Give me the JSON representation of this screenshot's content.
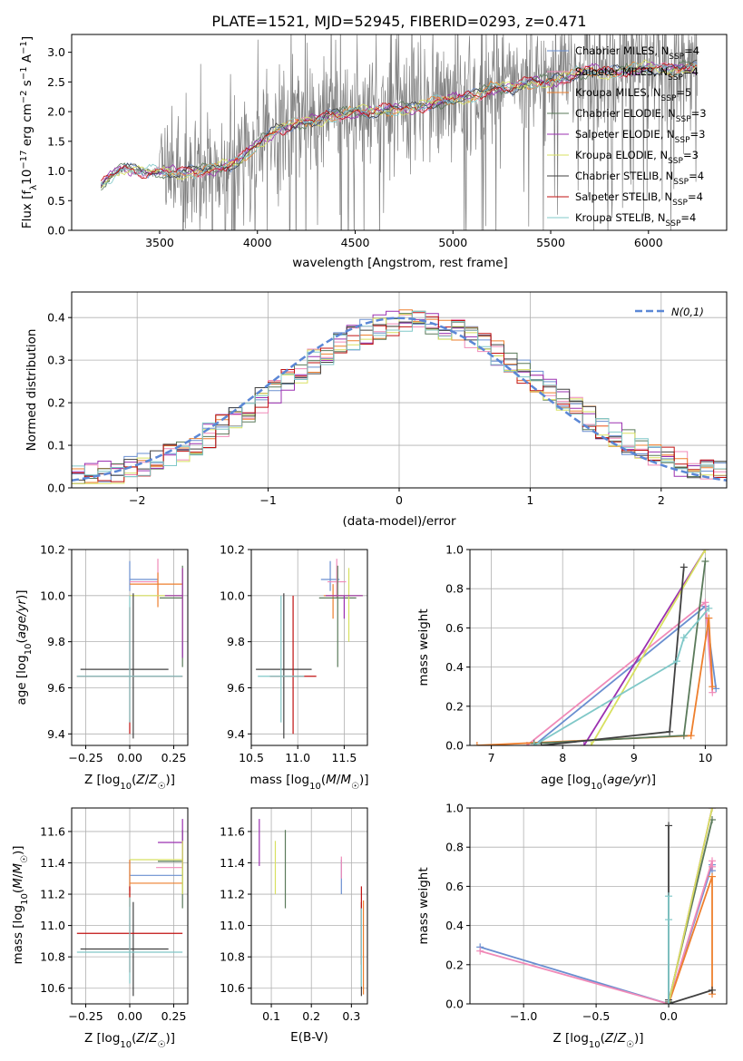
{
  "figure": {
    "title": "PLATE=1521, MJD=52945, FIBERID=0293, z=0.471"
  },
  "chart_data": [
    {
      "id": "spectrum",
      "type": "line",
      "xlabel": "wavelength [Angstrom, rest frame]",
      "ylabel": "Flux [f_λ 10^-17 erg cm^-2 s^-1 A^-1]",
      "xlim": [
        3050,
        6400
      ],
      "ylim": [
        0,
        3.3
      ],
      "xticks": [
        3500,
        4000,
        4500,
        5000,
        5500,
        6000
      ],
      "yticks": [
        0.0,
        0.5,
        1.0,
        1.5,
        2.0,
        2.5,
        3.0
      ],
      "grid": false,
      "legend": "top-right",
      "data_trend": {
        "x": [
          3200,
          3300,
          3400,
          3500,
          3600,
          3700,
          3800,
          3900,
          4000,
          4100,
          4200,
          4300,
          4400,
          4500,
          4600,
          4700,
          4800,
          4900,
          5000,
          5100,
          5200,
          5300,
          5400,
          5500,
          5600,
          5700,
          5800,
          5900,
          6000,
          6100,
          6200
        ],
        "y": [
          0.75,
          1.05,
          1.0,
          0.98,
          0.97,
          1.0,
          1.05,
          1.15,
          1.45,
          1.7,
          1.8,
          1.85,
          1.95,
          2.0,
          2.0,
          2.05,
          2.05,
          2.15,
          2.2,
          2.25,
          2.4,
          2.4,
          2.5,
          2.5,
          2.6,
          2.7,
          2.65,
          2.7,
          2.75,
          2.7,
          2.75
        ]
      },
      "series": [
        {
          "name": "Chabrier MILES, N_SSP=4",
          "color": "#6a8fd0"
        },
        {
          "name": "Salpeter MILES, N_SSP=4",
          "color": "#f08ab8"
        },
        {
          "name": "Kroupa MILES, N_SSP=5",
          "color": "#ee7f2d"
        },
        {
          "name": "Chabrier ELODIE, N_SSP=3",
          "color": "#5a7a5a"
        },
        {
          "name": "Salpeter ELODIE, N_SSP=3",
          "color": "#9b30b0"
        },
        {
          "name": "Kroupa ELODIE, N_SSP=3",
          "color": "#d8e060"
        },
        {
          "name": "Chabrier STELIB, N_SSP=4",
          "color": "#404040"
        },
        {
          "name": "Salpeter STELIB, N_SSP=4",
          "color": "#c01010"
        },
        {
          "name": "Kroupa STELIB, N_SSP=4",
          "color": "#80c8c8"
        }
      ]
    },
    {
      "id": "residuals",
      "type": "line",
      "xlabel": "(data-model)/error",
      "ylabel": "Normed distribution",
      "xlim": [
        -2.5,
        2.5
      ],
      "ylim": [
        0,
        0.46
      ],
      "xticks": [
        -2,
        -1,
        0,
        1,
        2
      ],
      "yticks": [
        0.0,
        0.1,
        0.2,
        0.3,
        0.4
      ],
      "grid": true,
      "legend": "top-right",
      "normal_label": "N(0,1)",
      "normal_color": "#5b87d6",
      "hist_x": [
        -2.5,
        2.5
      ],
      "hist_bins": 50
    },
    {
      "id": "age-vs-Z",
      "type": "scatter",
      "xlabel": "Z [log10(Z/Z☉)]",
      "ylabel": "age [log10(age/yr)]",
      "xlim": [
        -0.33,
        0.33
      ],
      "ylim": [
        9.35,
        10.2
      ],
      "xticks": [
        -0.25,
        0.0,
        0.25
      ],
      "yticks": [
        9.4,
        9.6,
        9.8,
        10.0,
        10.2
      ],
      "grid": true,
      "points": [
        {
          "x": 0.0,
          "y": 10.07,
          "xerr": [
            0.0,
            0.16
          ],
          "yerr": [
            0.05,
            0.08
          ],
          "c": 0
        },
        {
          "x": 0.16,
          "y": 10.06,
          "xerr": [
            0.16,
            0.0
          ],
          "yerr": [
            0.07,
            0.1
          ],
          "c": 1
        },
        {
          "x": 0.16,
          "y": 10.05,
          "xerr": [
            0.16,
            0.14
          ],
          "yerr": [
            0.1,
            0.05
          ],
          "c": 2
        },
        {
          "x": 0.3,
          "y": 9.99,
          "xerr": [
            0.13,
            0.0
          ],
          "yerr": [
            0.3,
            0.14
          ],
          "c": 3
        },
        {
          "x": 0.3,
          "y": 10.0,
          "xerr": [
            0.3,
            0.0
          ],
          "yerr": [
            0.2,
            0.12
          ],
          "c": 5
        },
        {
          "x": 0.3,
          "y": 10.0,
          "xerr": [
            0.1,
            0.0
          ],
          "yerr": [
            0.27,
            0.12
          ],
          "c": 4
        },
        {
          "x": 0.02,
          "y": 9.68,
          "xerr": [
            0.3,
            0.2
          ],
          "yerr": [
            0.3,
            0.33
          ],
          "c": 6
        },
        {
          "x": 0.0,
          "y": 9.65,
          "xerr": [
            0.3,
            0.3
          ],
          "yerr": [
            0.25,
            0.3
          ],
          "c": 7
        },
        {
          "x": 0.0,
          "y": 9.65,
          "xerr": [
            0.3,
            0.3
          ],
          "yerr": [
            0.2,
            0.35
          ],
          "c": 8
        }
      ]
    },
    {
      "id": "age-vs-mass",
      "type": "scatter",
      "xlabel": "mass [log10(M/M☉)]",
      "ylabel": "",
      "xlim": [
        10.5,
        11.75
      ],
      "ylim": [
        9.35,
        10.2
      ],
      "xticks": [
        10.5,
        11.0,
        11.5
      ],
      "yticks": [
        9.4,
        9.6,
        9.8,
        10.0,
        10.2
      ],
      "grid": true,
      "points": [
        {
          "x": 11.35,
          "y": 10.07,
          "xerr": [
            0.1,
            0.1
          ],
          "yerr": [
            0.05,
            0.08
          ],
          "c": 0
        },
        {
          "x": 11.42,
          "y": 10.06,
          "xerr": [
            0.1,
            0.1
          ],
          "yerr": [
            0.07,
            0.1
          ],
          "c": 1
        },
        {
          "x": 11.38,
          "y": 10.0,
          "xerr": [
            0.1,
            0.1
          ],
          "yerr": [
            0.1,
            0.05
          ],
          "c": 2
        },
        {
          "x": 11.43,
          "y": 9.99,
          "xerr": [
            0.2,
            0.2
          ],
          "yerr": [
            0.3,
            0.14
          ],
          "c": 3
        },
        {
          "x": 11.55,
          "y": 10.0,
          "xerr": [
            0.15,
            0.15
          ],
          "yerr": [
            0.2,
            0.12
          ],
          "c": 5
        },
        {
          "x": 11.5,
          "y": 10.0,
          "xerr": [
            0.2,
            0.2
          ],
          "yerr": [
            0.1,
            0.0
          ],
          "c": 4
        },
        {
          "x": 10.85,
          "y": 9.68,
          "xerr": [
            0.3,
            0.3
          ],
          "yerr": [
            0.3,
            0.33
          ],
          "c": 6
        },
        {
          "x": 10.95,
          "y": 9.65,
          "xerr": [
            0.25,
            0.25
          ],
          "yerr": [
            0.25,
            0.35
          ],
          "c": 7
        },
        {
          "x": 10.82,
          "y": 9.65,
          "xerr": [
            0.25,
            0.25
          ],
          "yerr": [
            0.2,
            0.35
          ],
          "c": 8
        }
      ]
    },
    {
      "id": "weight-vs-age",
      "type": "line",
      "xlabel": "age [log10(age/yr)]",
      "ylabel": "mass weight",
      "xlim": [
        6.7,
        10.3
      ],
      "ylim": [
        0,
        1.0
      ],
      "xticks": [
        7,
        8,
        9,
        10
      ],
      "yticks": [
        0.0,
        0.2,
        0.4,
        0.6,
        0.8,
        1.0
      ],
      "grid": true,
      "series": [
        {
          "c": 0,
          "x": [
            7.6,
            10.0,
            10.15
          ],
          "y": [
            0.0,
            0.71,
            0.29
          ]
        },
        {
          "c": 1,
          "x": [
            7.5,
            10.0,
            10.1
          ],
          "y": [
            0.0,
            0.73,
            0.27
          ]
        },
        {
          "c": 2,
          "x": [
            6.8,
            9.8,
            10.05,
            10.1
          ],
          "y": [
            0.0,
            0.05,
            0.65,
            0.3
          ]
        },
        {
          "c": 3,
          "x": [
            7.6,
            9.7,
            10.0
          ],
          "y": [
            0.01,
            0.05,
            0.94
          ]
        },
        {
          "c": 4,
          "x": [
            8.3,
            10.0
          ],
          "y": [
            0.0,
            1.0
          ]
        },
        {
          "c": 5,
          "x": [
            8.4,
            10.0
          ],
          "y": [
            0.0,
            1.0
          ]
        },
        {
          "c": 6,
          "x": [
            7.7,
            9.5,
            9.7
          ],
          "y": [
            0.0,
            0.07,
            0.91
          ]
        },
        {
          "c": 8,
          "x": [
            7.6,
            9.6,
            9.7,
            10.05
          ],
          "y": [
            0.0,
            0.43,
            0.55,
            0.7
          ]
        }
      ]
    },
    {
      "id": "mass-vs-Z",
      "type": "scatter",
      "xlabel": "Z [log10(Z/Z☉)]",
      "ylabel": "mass [log10(M/M☉)]",
      "xlim": [
        -0.33,
        0.33
      ],
      "ylim": [
        10.5,
        11.75
      ],
      "xticks": [
        -0.25,
        0.0,
        0.25
      ],
      "yticks": [
        10.6,
        10.8,
        11.0,
        11.2,
        11.4,
        11.6
      ],
      "grid": true,
      "points": [
        {
          "x": 0.0,
          "y": 11.32,
          "xerr": [
            0.0,
            0.3
          ],
          "yerr": [
            0.1,
            0.1
          ],
          "c": 0
        },
        {
          "x": 0.3,
          "y": 11.37,
          "xerr": [
            0.15,
            0.0
          ],
          "yerr": [
            0.07,
            0.07
          ],
          "c": 1
        },
        {
          "x": 0.0,
          "y": 11.27,
          "xerr": [
            0.0,
            0.3
          ],
          "yerr": [
            0.15,
            0.15
          ],
          "c": 2
        },
        {
          "x": 0.3,
          "y": 11.41,
          "xerr": [
            0.14,
            0.0
          ],
          "yerr": [
            0.3,
            0.2
          ],
          "c": 3
        },
        {
          "x": 0.3,
          "y": 11.53,
          "xerr": [
            0.14,
            0.0
          ],
          "yerr": [
            0.15,
            0.15
          ],
          "c": 4
        },
        {
          "x": 0.3,
          "y": 11.42,
          "xerr": [
            0.3,
            0.0
          ],
          "yerr": [
            0.22,
            0.12
          ],
          "c": 5
        },
        {
          "x": 0.02,
          "y": 10.85,
          "xerr": [
            0.3,
            0.2
          ],
          "yerr": [
            0.3,
            0.3
          ],
          "c": 6
        },
        {
          "x": 0.0,
          "y": 10.95,
          "xerr": [
            0.3,
            0.3
          ],
          "yerr": [
            0.25,
            0.3
          ],
          "c": 7
        },
        {
          "x": 0.0,
          "y": 10.83,
          "xerr": [
            0.3,
            0.3
          ],
          "yerr": [
            0.2,
            0.35
          ],
          "c": 8
        }
      ]
    },
    {
      "id": "mass-vs-EBV",
      "type": "scatter",
      "xlabel": "E(B-V)",
      "ylabel": "",
      "xlim": [
        0.05,
        0.34
      ],
      "ylim": [
        10.5,
        11.75
      ],
      "xticks": [
        0.1,
        0.2,
        0.3
      ],
      "yticks": [
        10.6,
        10.8,
        11.0,
        11.2,
        11.4,
        11.6
      ],
      "grid": true,
      "points": [
        {
          "x": 0.275,
          "y": 11.32,
          "xerr": [
            0,
            0
          ],
          "yerr": [
            0.12,
            0.1
          ],
          "c": 0
        },
        {
          "x": 0.275,
          "y": 11.37,
          "xerr": [
            0,
            0
          ],
          "yerr": [
            0.07,
            0.07
          ],
          "c": 1
        },
        {
          "x": 0.33,
          "y": 10.86,
          "xerr": [
            0,
            0
          ],
          "yerr": [
            0.3,
            0.3
          ],
          "c": 2
        },
        {
          "x": 0.135,
          "y": 11.41,
          "xerr": [
            0,
            0
          ],
          "yerr": [
            0.3,
            0.2
          ],
          "c": 3
        },
        {
          "x": 0.07,
          "y": 11.53,
          "xerr": [
            0,
            0
          ],
          "yerr": [
            0.15,
            0.15
          ],
          "c": 4
        },
        {
          "x": 0.11,
          "y": 11.37,
          "xerr": [
            0,
            0
          ],
          "yerr": [
            0.17,
            0.17
          ],
          "c": 5
        },
        {
          "x": 0.325,
          "y": 10.85,
          "xerr": [
            0,
            0
          ],
          "yerr": [
            0.3,
            0.3
          ],
          "c": 6
        },
        {
          "x": 0.325,
          "y": 11.0,
          "xerr": [
            0,
            0
          ],
          "yerr": [
            0.25,
            0.25
          ],
          "c": 7
        },
        {
          "x": 0.325,
          "y": 10.86,
          "xerr": [
            0,
            0
          ],
          "yerr": [
            0.25,
            0.25
          ],
          "c": 8
        }
      ]
    },
    {
      "id": "weight-vs-Z",
      "type": "line",
      "xlabel": "Z [log10(Z/Z☉)]",
      "ylabel": "mass weight",
      "xlim": [
        -1.37,
        0.4
      ],
      "ylim": [
        0,
        1.0
      ],
      "xticks": [
        -1.0,
        -0.5,
        0.0
      ],
      "yticks": [
        0.0,
        0.2,
        0.4,
        0.6,
        0.8,
        1.0
      ],
      "grid": true,
      "series": [
        {
          "c": 0,
          "x": [
            -1.3,
            0.0,
            0.3,
            0.3
          ],
          "y": [
            0.29,
            0.0,
            0.71,
            0.68
          ]
        },
        {
          "c": 1,
          "x": [
            -1.3,
            0.0,
            0.3,
            0.3
          ],
          "y": [
            0.27,
            0.0,
            0.73,
            0.7
          ]
        },
        {
          "c": 2,
          "x": [
            0.0,
            0.3,
            0.3
          ],
          "y": [
            0.0,
            0.65,
            0.05
          ]
        },
        {
          "c": 3,
          "x": [
            0.0,
            0.3
          ],
          "y": [
            0.01,
            0.94
          ]
        },
        {
          "c": 4,
          "x": [
            0.0,
            0.3
          ],
          "y": [
            0.0,
            1.0
          ]
        },
        {
          "c": 5,
          "x": [
            0.0,
            0.3
          ],
          "y": [
            0.0,
            1.0
          ]
        },
        {
          "c": 6,
          "x": [
            0.0,
            0.0,
            0.0,
            0.3
          ],
          "y": [
            0.91,
            0.02,
            0.0,
            0.07
          ]
        },
        {
          "c": 8,
          "x": [
            0.0,
            0.0,
            0.0
          ],
          "y": [
            0.55,
            0.43,
            0.0
          ]
        }
      ]
    }
  ]
}
